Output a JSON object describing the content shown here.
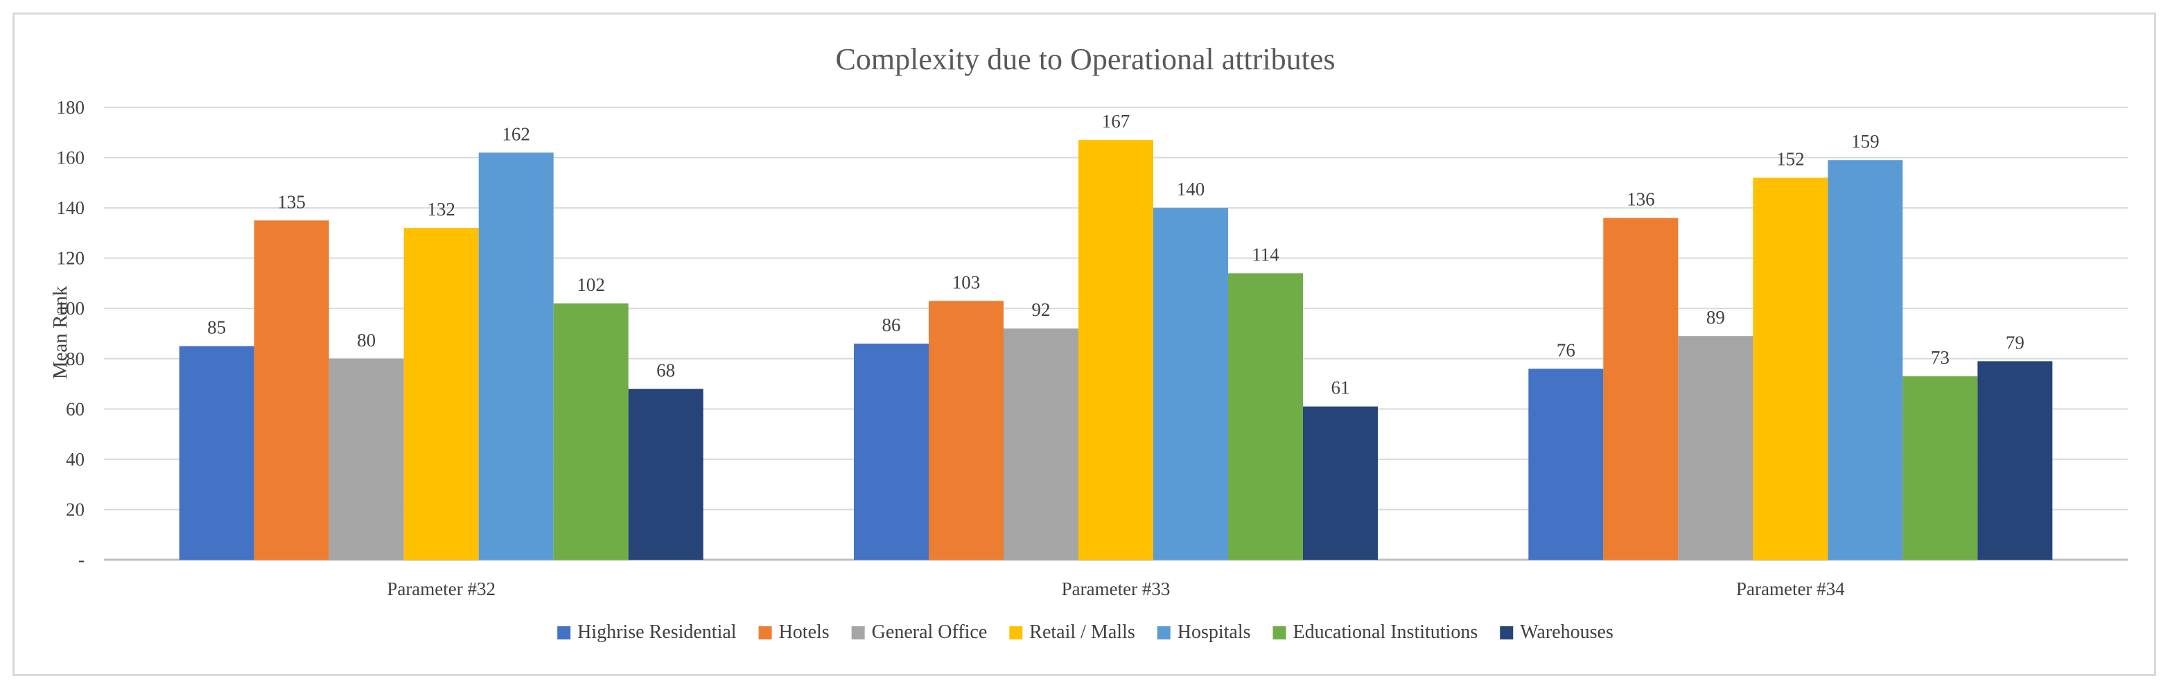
{
  "chart_data": {
    "type": "bar",
    "title": "Complexity due to Operational attributes",
    "xlabel": "",
    "ylabel": "Mean Rank",
    "ylim": [
      0,
      180
    ],
    "yticks": [
      0,
      20,
      40,
      60,
      80,
      100,
      120,
      140,
      160,
      180
    ],
    "ytick_labels": [
      "-",
      "20",
      "40",
      "60",
      "80",
      "100",
      "120",
      "140",
      "160",
      "180"
    ],
    "grid": true,
    "legend_position": "bottom",
    "categories": [
      "Parameter #32",
      "Parameter #33",
      "Parameter #34"
    ],
    "series": [
      {
        "name": "Highrise Residential",
        "color": "#4472c4",
        "values": [
          85,
          86,
          76
        ]
      },
      {
        "name": "Hotels",
        "color": "#ed7d31",
        "values": [
          135,
          103,
          136
        ]
      },
      {
        "name": "General Office",
        "color": "#a5a5a5",
        "values": [
          80,
          92,
          89
        ]
      },
      {
        "name": "Retail / Malls",
        "color": "#ffc000",
        "values": [
          132,
          167,
          152
        ]
      },
      {
        "name": "Hospitals",
        "color": "#5b9bd5",
        "values": [
          162,
          140,
          159
        ]
      },
      {
        "name": "Educational Institutions",
        "color": "#70ad47",
        "values": [
          102,
          114,
          73
        ]
      },
      {
        "name": "Warehouses",
        "color": "#264478",
        "values": [
          68,
          61,
          79
        ]
      }
    ]
  },
  "colors": {
    "gridline": "#d9d9d9",
    "axis": "#bfbfbf"
  }
}
